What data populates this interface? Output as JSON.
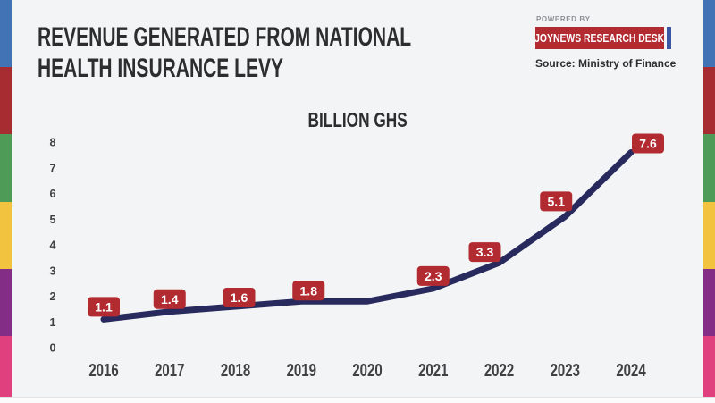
{
  "header": {
    "title_line1": "REVENUE GENERATED FROM NATIONAL",
    "title_line2": "HEALTH INSURANCE LEVY",
    "powered_by": "POWERED BY",
    "brand": "JOYNEWS RESEARCH DESK",
    "source": "Source: Ministry of Finance"
  },
  "colors": {
    "background": "#f3f4f5",
    "text_dark": "#2d2d30",
    "axis_text": "#414144",
    "powered_gray": "#8f8f93",
    "brand_red": "#b22b31",
    "brand_blue": "#3c56a5",
    "line_navy": "#282a5e",
    "label_red": "#b22b31",
    "label_text": "#ffffff",
    "stripe": [
      "#4273b4",
      "#a62c32",
      "#4e9b57",
      "#f2c33e",
      "#842d87",
      "#e0407d"
    ]
  },
  "chart_data": {
    "type": "line",
    "title": "BILLION GHS",
    "xlabel": "",
    "ylabel": "",
    "x": [
      "2016",
      "2017",
      "2018",
      "2019",
      "2020",
      "2021",
      "2022",
      "2023",
      "2024"
    ],
    "values": [
      1.1,
      1.4,
      1.6,
      1.8,
      1.8,
      2.3,
      3.3,
      5.1,
      7.6
    ],
    "point_labels": [
      "1.1",
      "1.4",
      "1.6",
      "1.8",
      "",
      "2.3",
      "3.3",
      "5.1",
      "7.6"
    ],
    "ylim": [
      0,
      8
    ],
    "yticks": [
      0,
      1,
      2,
      3,
      4,
      5,
      6,
      7,
      8
    ],
    "grid": false,
    "legend": "none",
    "label_offset_default": [
      0,
      -14
    ],
    "label_offset_overrides": {
      "2": [
        4,
        -10
      ],
      "3": [
        8,
        -12
      ],
      "6": [
        -16,
        -12
      ],
      "7": [
        -10,
        -17
      ],
      "8": [
        19,
        -10
      ]
    }
  }
}
